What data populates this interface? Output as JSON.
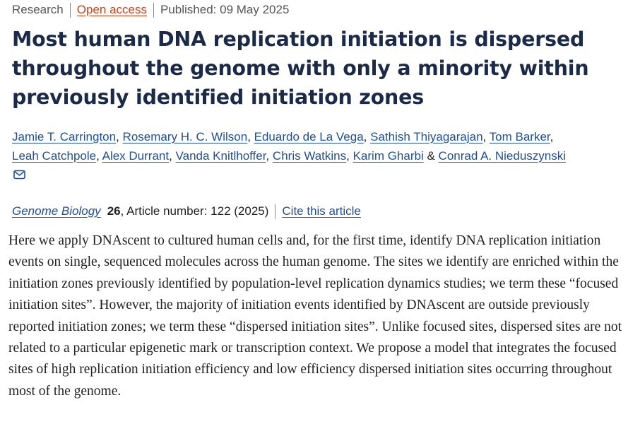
{
  "meta": {
    "type": "Research",
    "access": "Open access",
    "published": "Published: 09 May 2025"
  },
  "title": "Most human DNA replication initiation is dispersed throughout the genome with only a minority within previously identified initiation zones",
  "authors": [
    "Jamie T. Carrington",
    "Rosemary H. C. Wilson",
    "Eduardo de La Vega",
    "Sathish Thiyagarajan",
    "Tom Barker",
    "Leah Catchpole",
    "Alex Durrant",
    "Vanda Knitlhoffer",
    "Chris Watkins",
    "Karim Gharbi",
    "Conrad A. Nieduszynski"
  ],
  "citation": {
    "journal": "Genome Biology",
    "volume": "26",
    "article": ", Article number: 122 (2025)",
    "cite_label": "Cite this article"
  },
  "abstract": "Here we apply DNAscent to cultured human cells and, for the first time, identify DNA replication initiation events on single, sequenced molecules across the human genome. The sites we identify are enriched within the initiation zones previously identified by population-level replication dynamics studies; we term these “focused initiation sites”. However, the majority of initiation events identified by DNAscent are outside previously reported initiation zones; we term these “dispersed initiation sites”. Unlike focused sites, dispersed sites are not related to a particular epigenetic mark or transcription context. We propose a model that integrates the focused sites of high replication initiation efficiency and low efficiency dispersed initiation sites occurring throughout most of the genome.",
  "icons": {
    "corresponding_author": "mail-icon"
  }
}
